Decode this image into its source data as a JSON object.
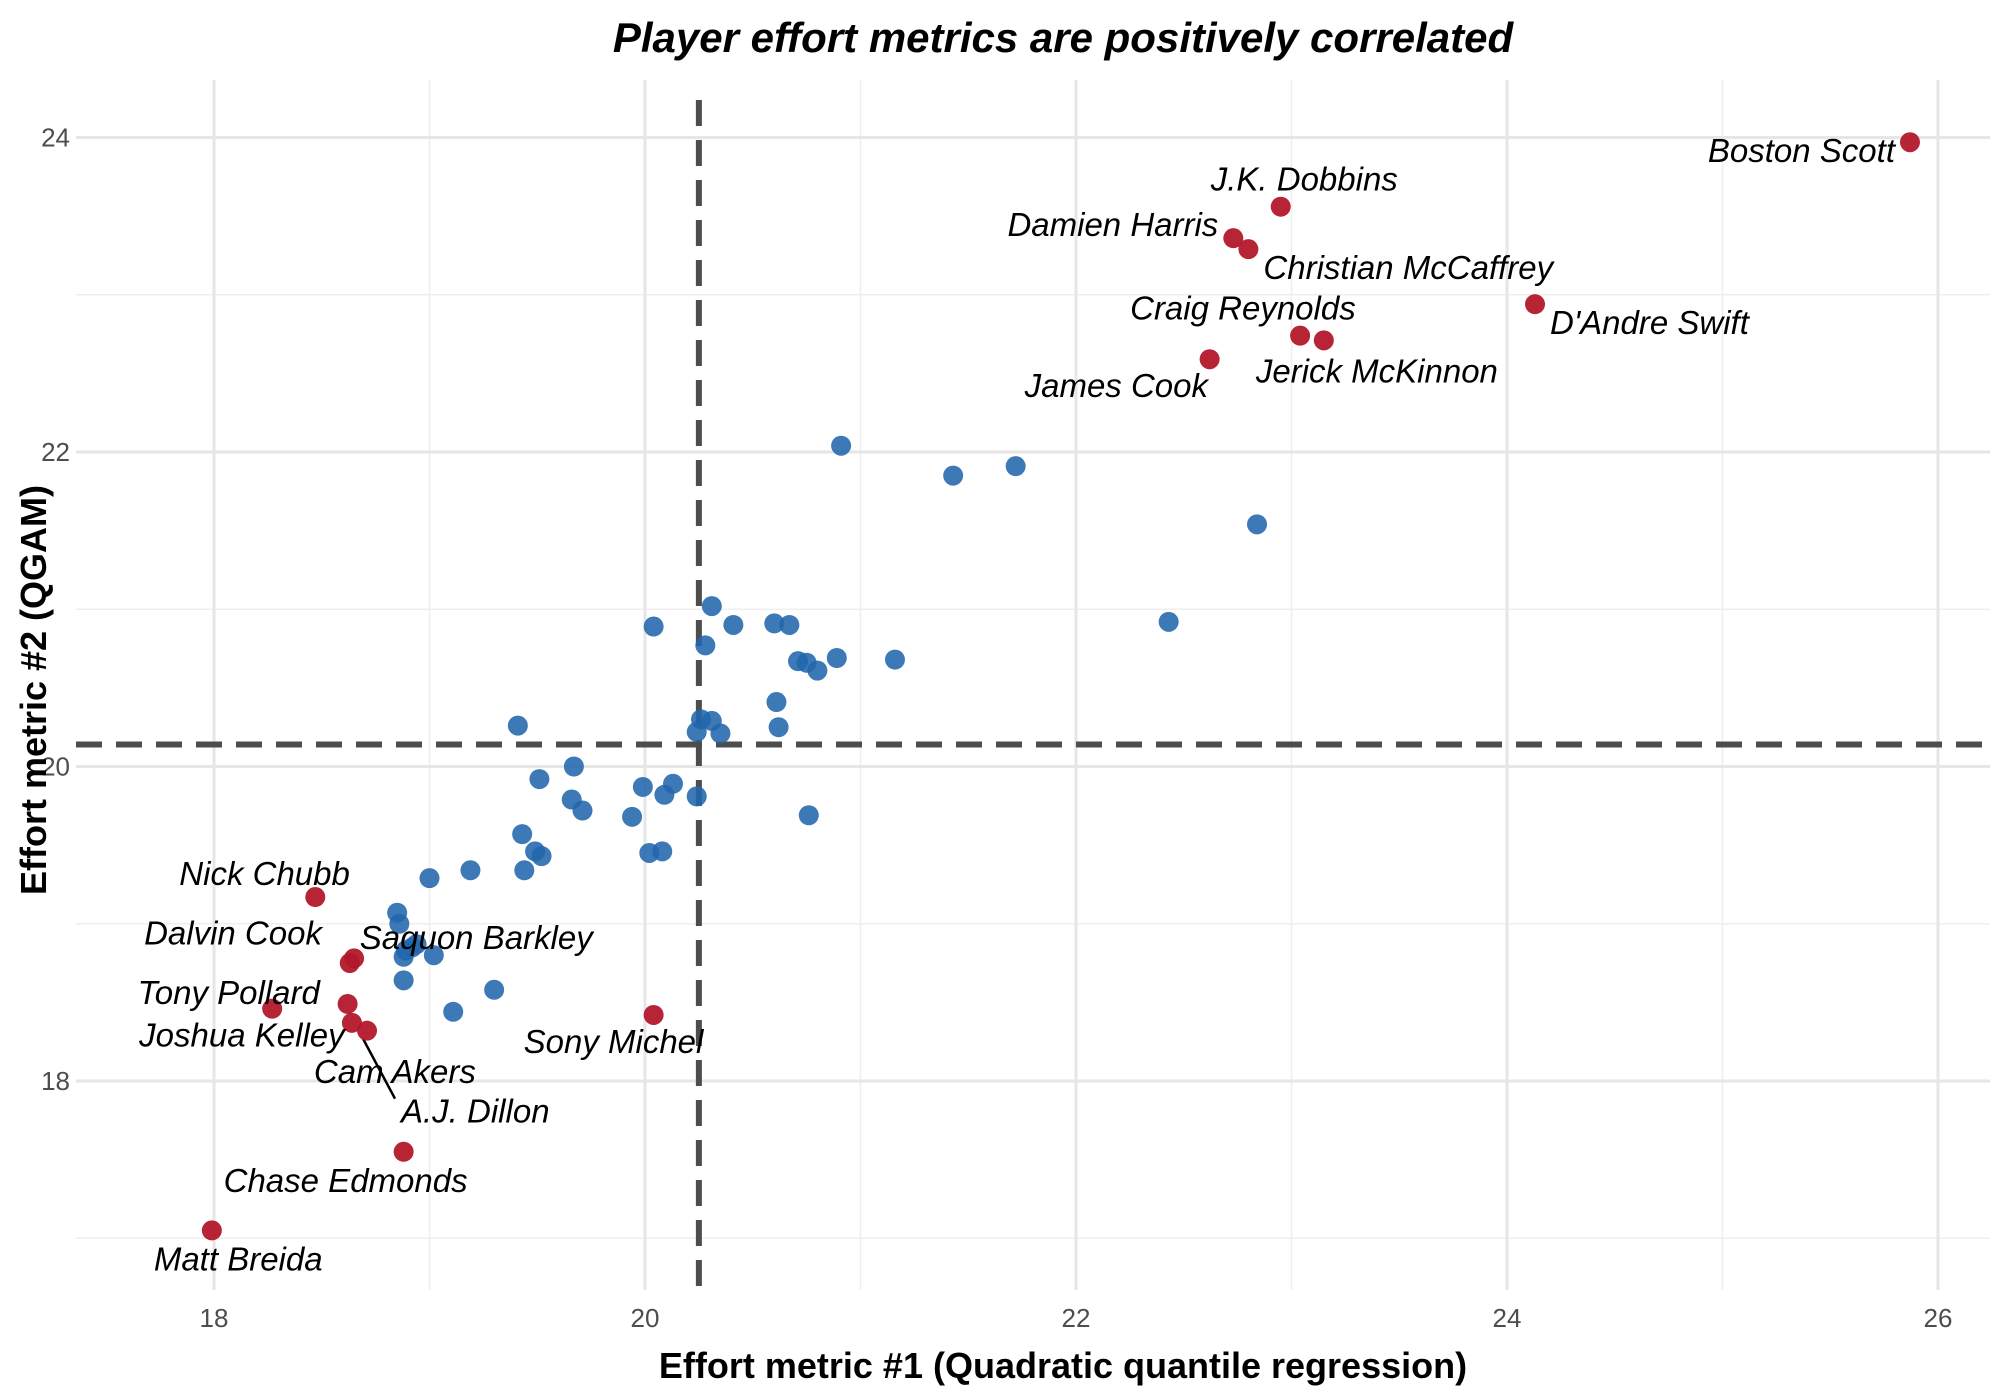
{
  "chart_data": {
    "type": "scatter",
    "title": "Player effort metrics are positively correlated",
    "xlabel": "Effort metric #1 (Quadratic quantile regression)",
    "ylabel": "Effort metric #2 (QGAM)",
    "xlim": [
      17.6,
      26.25
    ],
    "ylim": [
      16.75,
      24.45
    ],
    "xticks": [
      18,
      20,
      22,
      24,
      26
    ],
    "yticks": [
      18,
      20,
      22,
      24
    ],
    "vline": 20.25,
    "hline": 20.14,
    "grid": true,
    "legend": "none",
    "colors": {
      "highlight": "#b2182b",
      "other": "#2166ac",
      "reference": "#4d4d4d"
    },
    "highlighted": [
      {
        "name": "Boston Scott",
        "x": 25.87,
        "y": 23.97
      },
      {
        "name": "J.K. Dobbins",
        "x": 22.95,
        "y": 23.56
      },
      {
        "name": "Damien Harris",
        "x": 22.73,
        "y": 23.36
      },
      {
        "name": "Christian McCaffrey",
        "x": 22.8,
        "y": 23.29
      },
      {
        "name": "D'Andre Swift",
        "x": 24.13,
        "y": 22.94
      },
      {
        "name": "Craig Reynolds",
        "x": 23.04,
        "y": 22.74
      },
      {
        "name": "Jerick McKinnon",
        "x": 23.15,
        "y": 22.71
      },
      {
        "name": "James Cook",
        "x": 22.62,
        "y": 22.59
      },
      {
        "name": "Nick Chubb",
        "x": 18.47,
        "y": 19.17
      },
      {
        "name": "Dalvin Cook",
        "x": 18.65,
        "y": 18.78
      },
      {
        "name": "Saquon Barkley",
        "x": 18.63,
        "y": 18.75
      },
      {
        "name": "Tony Pollard",
        "x": 18.62,
        "y": 18.49
      },
      {
        "name": "Joshua Kelley",
        "x": 18.27,
        "y": 18.46
      },
      {
        "name": "Cam Akers",
        "x": 18.64,
        "y": 18.37
      },
      {
        "name": "A.J. Dillon",
        "x": 18.71,
        "y": 18.32
      },
      {
        "name": "Sony Michel",
        "x": 20.04,
        "y": 18.42
      },
      {
        "name": "Chase Edmonds",
        "x": 18.88,
        "y": 17.55
      },
      {
        "name": "Matt Breida",
        "x": 17.99,
        "y": 17.05
      }
    ],
    "others": [
      {
        "x": 20.91,
        "y": 22.04
      },
      {
        "x": 21.72,
        "y": 21.91
      },
      {
        "x": 21.43,
        "y": 21.85
      },
      {
        "x": 22.84,
        "y": 21.54
      },
      {
        "x": 22.43,
        "y": 20.92
      },
      {
        "x": 20.31,
        "y": 21.02
      },
      {
        "x": 20.04,
        "y": 20.89
      },
      {
        "x": 20.28,
        "y": 20.77
      },
      {
        "x": 20.41,
        "y": 20.9
      },
      {
        "x": 20.6,
        "y": 20.91
      },
      {
        "x": 20.67,
        "y": 20.9
      },
      {
        "x": 20.71,
        "y": 20.67
      },
      {
        "x": 20.75,
        "y": 20.66
      },
      {
        "x": 20.8,
        "y": 20.61
      },
      {
        "x": 20.89,
        "y": 20.69
      },
      {
        "x": 21.16,
        "y": 20.68
      },
      {
        "x": 20.61,
        "y": 20.41
      },
      {
        "x": 20.62,
        "y": 20.25
      },
      {
        "x": 20.26,
        "y": 20.3
      },
      {
        "x": 20.31,
        "y": 20.29
      },
      {
        "x": 20.24,
        "y": 20.22
      },
      {
        "x": 20.35,
        "y": 20.21
      },
      {
        "x": 19.41,
        "y": 20.26
      },
      {
        "x": 19.67,
        "y": 20.0
      },
      {
        "x": 19.51,
        "y": 19.92
      },
      {
        "x": 19.99,
        "y": 19.87
      },
      {
        "x": 20.13,
        "y": 19.89
      },
      {
        "x": 20.09,
        "y": 19.82
      },
      {
        "x": 20.24,
        "y": 19.81
      },
      {
        "x": 19.66,
        "y": 19.79
      },
      {
        "x": 19.71,
        "y": 19.72
      },
      {
        "x": 19.94,
        "y": 19.68
      },
      {
        "x": 20.76,
        "y": 19.69
      },
      {
        "x": 19.43,
        "y": 19.57
      },
      {
        "x": 19.49,
        "y": 19.46
      },
      {
        "x": 19.52,
        "y": 19.43
      },
      {
        "x": 20.02,
        "y": 19.45
      },
      {
        "x": 20.08,
        "y": 19.46
      },
      {
        "x": 19.44,
        "y": 19.34
      },
      {
        "x": 19.19,
        "y": 19.34
      },
      {
        "x": 19.0,
        "y": 19.29
      },
      {
        "x": 18.85,
        "y": 19.07
      },
      {
        "x": 18.86,
        "y": 19.0
      },
      {
        "x": 18.89,
        "y": 18.83
      },
      {
        "x": 18.92,
        "y": 18.85
      },
      {
        "x": 18.94,
        "y": 18.87
      },
      {
        "x": 19.02,
        "y": 18.8
      },
      {
        "x": 18.88,
        "y": 18.79
      },
      {
        "x": 18.88,
        "y": 18.64
      },
      {
        "x": 19.3,
        "y": 18.58
      },
      {
        "x": 19.11,
        "y": 18.44
      }
    ]
  }
}
